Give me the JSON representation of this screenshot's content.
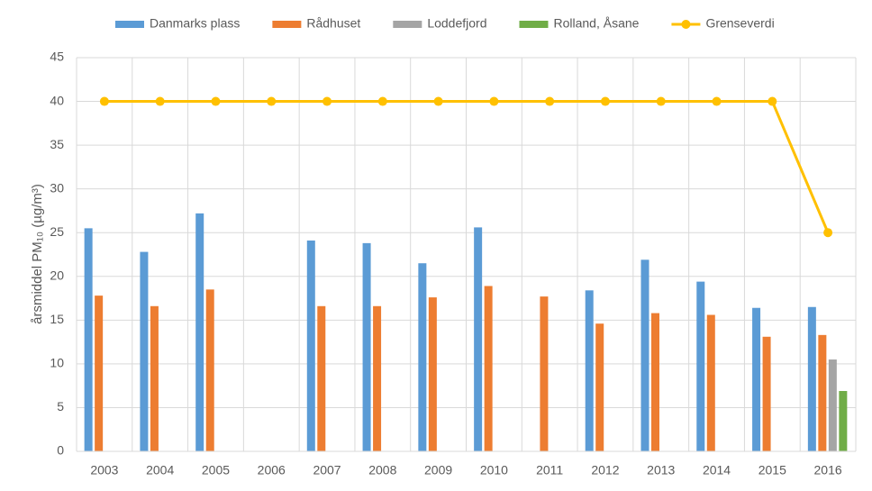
{
  "chart_data": {
    "type": "bar",
    "ylabel": "årsmiddel PM₁₀ (µg/m³)",
    "categories": [
      "2003",
      "2004",
      "2005",
      "2006",
      "2007",
      "2008",
      "2009",
      "2010",
      "2011",
      "2012",
      "2013",
      "2014",
      "2015",
      "2016"
    ],
    "series": [
      {
        "name": "Danmarks plass",
        "color": "#5b9bd5",
        "values": [
          25.5,
          22.8,
          27.2,
          null,
          24.1,
          23.8,
          21.5,
          25.6,
          null,
          18.4,
          21.9,
          19.4,
          16.4,
          16.5
        ]
      },
      {
        "name": "Rådhuset",
        "color": "#ed7d31",
        "values": [
          17.8,
          16.6,
          18.5,
          null,
          16.6,
          16.6,
          17.6,
          18.9,
          17.7,
          14.6,
          15.8,
          15.6,
          13.1,
          13.3
        ]
      },
      {
        "name": "Loddefjord",
        "color": "#a5a5a5",
        "values": [
          null,
          null,
          null,
          null,
          null,
          null,
          null,
          null,
          null,
          null,
          null,
          null,
          null,
          10.5
        ]
      },
      {
        "name": "Rolland, Åsane",
        "color": "#70ad47",
        "values": [
          null,
          null,
          null,
          null,
          null,
          null,
          null,
          null,
          null,
          null,
          null,
          null,
          null,
          6.9
        ]
      },
      {
        "name": "Grenseverdi",
        "type": "line",
        "color": "#ffc000",
        "values": [
          40,
          40,
          40,
          40,
          40,
          40,
          40,
          40,
          40,
          40,
          40,
          40,
          40,
          25
        ]
      }
    ],
    "ylim": [
      0,
      45
    ],
    "yticks": [
      0,
      5,
      10,
      15,
      20,
      25,
      30,
      35,
      40,
      45
    ],
    "grid": true,
    "legend": "top"
  }
}
